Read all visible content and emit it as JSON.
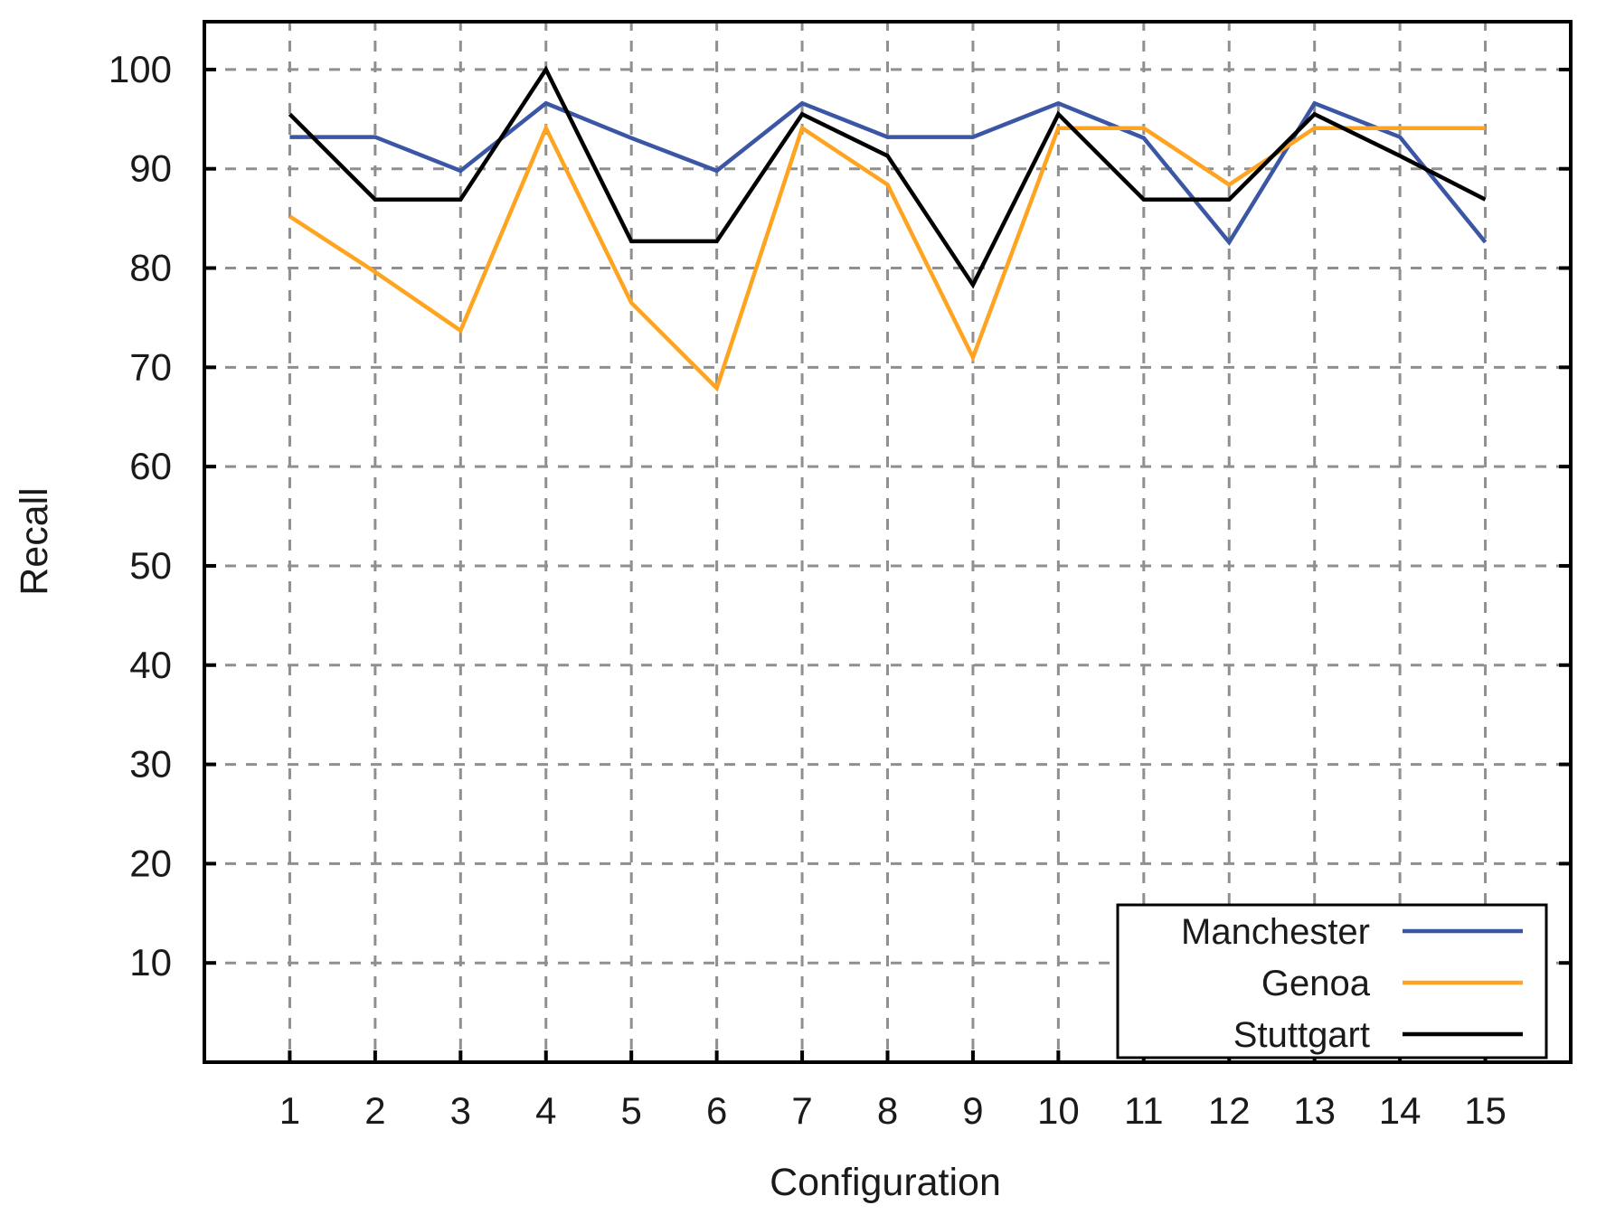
{
  "chart_data": {
    "type": "line",
    "title": "",
    "xlabel": "Configuration",
    "ylabel": "Recall",
    "x": [
      1,
      2,
      3,
      4,
      5,
      6,
      7,
      8,
      9,
      10,
      11,
      12,
      13,
      14,
      15
    ],
    "xlim": [
      0,
      16
    ],
    "ylim": [
      0,
      105
    ],
    "xticks": [
      1,
      2,
      3,
      4,
      5,
      6,
      7,
      8,
      9,
      10,
      11,
      12,
      13,
      14,
      15
    ],
    "yticks": [
      10,
      20,
      30,
      40,
      50,
      60,
      70,
      80,
      90,
      100
    ],
    "grid": true,
    "grid_style": "dashed",
    "legend_position": "bottom-right",
    "series": [
      {
        "name": "Manchester",
        "color": "#3B56A5",
        "values": [
          93.2,
          93.2,
          89.8,
          96.6,
          93.1,
          89.8,
          96.6,
          93.2,
          93.2,
          96.6,
          93.1,
          82.6,
          96.6,
          93.2,
          82.6
        ]
      },
      {
        "name": "Genoa",
        "color": "#FFA420",
        "values": [
          85.2,
          79.6,
          73.7,
          94.1,
          76.5,
          67.9,
          94.1,
          88.4,
          71.0,
          94.1,
          94.1,
          88.4,
          94.1,
          94.1,
          94.1
        ]
      },
      {
        "name": "Stuttgart",
        "color": "#000000",
        "values": [
          95.5,
          86.9,
          86.9,
          100.0,
          82.7,
          82.7,
          95.5,
          91.3,
          78.3,
          95.5,
          86.9,
          86.9,
          95.5,
          91.3,
          86.9
        ]
      }
    ],
    "colors": {
      "grid": "#8F8F8F",
      "border": "#000000",
      "text": "#1A1A1A",
      "background": "#FFFFFF"
    }
  }
}
